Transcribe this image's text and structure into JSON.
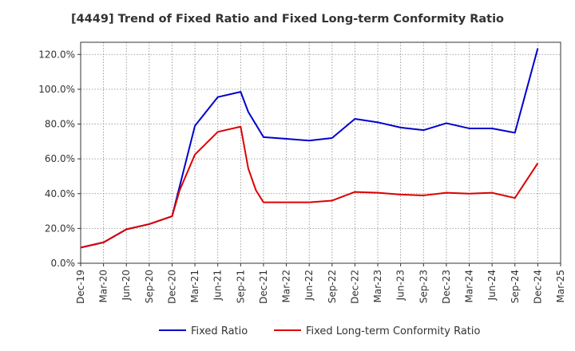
{
  "chart_data": {
    "type": "line",
    "title": "[4449]  Trend of Fixed Ratio and Fixed Long-term Conformity Ratio",
    "xlabel": "",
    "ylabel": "",
    "x_ticks": [
      "Dec-19",
      "Mar-20",
      "Jun-20",
      "Sep-20",
      "Dec-20",
      "Mar-21",
      "Jun-21",
      "Sep-21",
      "Dec-21",
      "Mar-22",
      "Jun-22",
      "Sep-22",
      "Dec-22",
      "Mar-23",
      "Jun-23",
      "Sep-23",
      "Dec-23",
      "Mar-24",
      "Jun-24",
      "Sep-24",
      "Dec-24",
      "Mar-25"
    ],
    "y_ticks": [
      "0.0%",
      "20.0%",
      "40.0%",
      "60.0%",
      "80.0%",
      "100.0%",
      "120.0%"
    ],
    "ylim": [
      0,
      127
    ],
    "grid": true,
    "legend_position": "bottom",
    "series": [
      {
        "name": "Fixed Ratio",
        "color": "#0000cc",
        "points": [
          {
            "x": "Dec-19",
            "y": 9.0
          },
          {
            "x": "Mar-20",
            "y": 12.0
          },
          {
            "x": "Jun-20",
            "y": 19.5
          },
          {
            "x": "Sep-20",
            "y": 22.5
          },
          {
            "x": "Dec-20",
            "y": 27.0
          },
          {
            "x": "Mar-21",
            "y": 79.0
          },
          {
            "x": "Jun-21",
            "y": 95.5
          },
          {
            "x": "Sep-21",
            "y": 98.5
          },
          {
            "x": "Oct-21",
            "y": 87.0
          },
          {
            "x": "Dec-21",
            "y": 72.5
          },
          {
            "x": "Mar-22",
            "y": 71.5
          },
          {
            "x": "Jun-22",
            "y": 70.5
          },
          {
            "x": "Sep-22",
            "y": 72.0
          },
          {
            "x": "Dec-22",
            "y": 83.0
          },
          {
            "x": "Mar-23",
            "y": 81.0
          },
          {
            "x": "Jun-23",
            "y": 78.0
          },
          {
            "x": "Sep-23",
            "y": 76.5
          },
          {
            "x": "Dec-23",
            "y": 80.5
          },
          {
            "x": "Mar-24",
            "y": 77.5
          },
          {
            "x": "Jun-24",
            "y": 77.5
          },
          {
            "x": "Sep-24",
            "y": 75.0
          },
          {
            "x": "Dec-24",
            "y": 123.5
          }
        ]
      },
      {
        "name": "Fixed Long-term Conformity Ratio",
        "color": "#dd0000",
        "points": [
          {
            "x": "Dec-19",
            "y": 9.0
          },
          {
            "x": "Mar-20",
            "y": 12.0
          },
          {
            "x": "Jun-20",
            "y": 19.5
          },
          {
            "x": "Sep-20",
            "y": 22.5
          },
          {
            "x": "Dec-20",
            "y": 27.0
          },
          {
            "x": "Jan-21",
            "y": 42.0
          },
          {
            "x": "Mar-21",
            "y": 62.5
          },
          {
            "x": "Jun-21",
            "y": 75.5
          },
          {
            "x": "Sep-21",
            "y": 78.5
          },
          {
            "x": "Oct-21",
            "y": 54.5
          },
          {
            "x": "Nov-21",
            "y": 42.0
          },
          {
            "x": "Dec-21",
            "y": 35.0
          },
          {
            "x": "Mar-22",
            "y": 35.0
          },
          {
            "x": "Jun-22",
            "y": 35.0
          },
          {
            "x": "Sep-22",
            "y": 36.0
          },
          {
            "x": "Dec-22",
            "y": 41.0
          },
          {
            "x": "Mar-23",
            "y": 40.5
          },
          {
            "x": "Jun-23",
            "y": 39.5
          },
          {
            "x": "Sep-23",
            "y": 39.0
          },
          {
            "x": "Dec-23",
            "y": 40.5
          },
          {
            "x": "Mar-24",
            "y": 40.0
          },
          {
            "x": "Jun-24",
            "y": 40.5
          },
          {
            "x": "Sep-24",
            "y": 37.5
          },
          {
            "x": "Dec-24",
            "y": 57.5
          }
        ]
      }
    ]
  }
}
